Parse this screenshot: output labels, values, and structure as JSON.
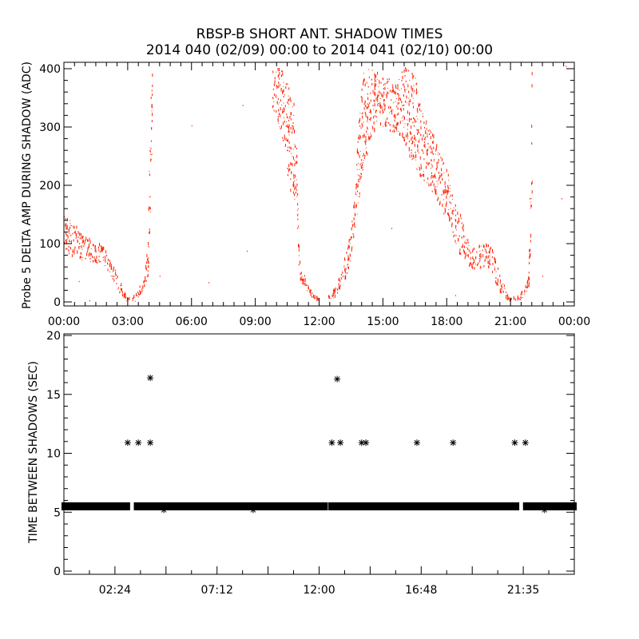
{
  "chart_data": [
    {
      "type": "scatter",
      "title": "RBSP-B SHORT ANT. SHADOW TIMES",
      "subtitle": "2014 040 (02/09) 00:00 to 2014 041 (02/10) 00:00",
      "xlabel": "",
      "ylabel": "Probe 5 DELTA AMP DURING SHADOW (ADC)",
      "x_unit": "hours",
      "xlim": [
        0,
        24
      ],
      "ylim": [
        0,
        400
      ],
      "xticks": [
        "00:00",
        "03:00",
        "06:00",
        "09:00",
        "12:00",
        "15:00",
        "18:00",
        "21:00",
        "00:00"
      ],
      "yticks": [
        "0",
        "100",
        "200",
        "300",
        "400"
      ],
      "color": "#ff2000",
      "envelope_note": "dense scatter bands given as [hour, min ADC, max ADC]",
      "bands": [
        [
          0.0,
          80,
          150
        ],
        [
          0.25,
          78,
          140
        ],
        [
          0.5,
          75,
          130
        ],
        [
          0.75,
          72,
          118
        ],
        [
          1.0,
          70,
          110
        ],
        [
          1.25,
          68,
          105
        ],
        [
          1.5,
          65,
          100
        ],
        [
          1.75,
          62,
          95
        ],
        [
          2.0,
          55,
          88
        ],
        [
          2.25,
          40,
          65
        ],
        [
          2.5,
          20,
          45
        ],
        [
          2.75,
          5,
          20
        ],
        [
          2.95,
          0,
          5
        ],
        [
          3.35,
          0,
          8
        ],
        [
          3.55,
          10,
          25
        ],
        [
          3.8,
          25,
          40
        ],
        [
          3.95,
          40,
          120
        ],
        [
          4.05,
          150,
          330
        ],
        [
          4.15,
          300,
          400
        ],
        [
          9.8,
          330,
          400
        ],
        [
          10.1,
          300,
          400
        ],
        [
          10.4,
          250,
          390
        ],
        [
          10.6,
          190,
          360
        ],
        [
          10.8,
          180,
          340
        ],
        [
          10.95,
          150,
          260
        ],
        [
          11.05,
          40,
          70
        ],
        [
          11.25,
          25,
          50
        ],
        [
          11.5,
          10,
          25
        ],
        [
          11.75,
          2,
          10
        ],
        [
          11.95,
          0,
          4
        ],
        [
          12.4,
          0,
          8
        ],
        [
          12.7,
          5,
          20
        ],
        [
          13.0,
          20,
          50
        ],
        [
          13.25,
          40,
          80
        ],
        [
          13.5,
          70,
          130
        ],
        [
          13.7,
          120,
          190
        ],
        [
          13.85,
          170,
          330
        ],
        [
          14.1,
          240,
          400
        ],
        [
          14.4,
          260,
          400
        ],
        [
          14.7,
          300,
          390
        ],
        [
          15.0,
          300,
          390
        ],
        [
          15.3,
          290,
          380
        ],
        [
          15.6,
          290,
          370
        ],
        [
          15.9,
          280,
          400
        ],
        [
          16.2,
          250,
          400
        ],
        [
          16.5,
          230,
          400
        ],
        [
          16.8,
          210,
          330
        ],
        [
          17.1,
          200,
          300
        ],
        [
          17.4,
          180,
          280
        ],
        [
          17.7,
          160,
          250
        ],
        [
          18.0,
          140,
          230
        ],
        [
          18.3,
          110,
          170
        ],
        [
          18.6,
          80,
          150
        ],
        [
          18.9,
          65,
          110
        ],
        [
          19.2,
          55,
          90
        ],
        [
          19.5,
          55,
          95
        ],
        [
          19.8,
          60,
          100
        ],
        [
          20.1,
          50,
          95
        ],
        [
          20.4,
          20,
          55
        ],
        [
          20.7,
          5,
          25
        ],
        [
          20.95,
          0,
          5
        ],
        [
          21.4,
          0,
          8
        ],
        [
          21.65,
          10,
          25
        ],
        [
          21.85,
          25,
          45
        ],
        [
          22.0,
          150,
          400
        ]
      ],
      "isolated_points": [
        [
          8.4,
          338
        ],
        [
          6.0,
          303
        ],
        [
          4.5,
          45
        ],
        [
          8.6,
          88
        ],
        [
          6.8,
          34
        ],
        [
          1.2,
          3
        ],
        [
          0.7,
          36
        ],
        [
          15.4,
          127
        ],
        [
          22.5,
          45
        ],
        [
          23.4,
          178
        ],
        [
          23.6,
          405
        ],
        [
          18.4,
          12
        ],
        [
          3.9,
          45
        ]
      ]
    },
    {
      "type": "scatter",
      "marker": "asterisk",
      "ylabel": "TIME BETWEEN SHADOWS (SEC)",
      "x_unit": "hours",
      "xlim": [
        0,
        24
      ],
      "ylim": [
        0,
        20
      ],
      "xticks": [
        "02:24",
        "07:12",
        "12:00",
        "16:48",
        "21:35"
      ],
      "xtick_values": [
        2.4,
        7.2,
        12.0,
        16.8,
        21.6
      ],
      "yticks": [
        "0",
        "5",
        "10",
        "15",
        "20"
      ],
      "color": "#000000",
      "baseline_value": 5.5,
      "baseline_segments": [
        [
          0.0,
          3.0
        ],
        [
          3.4,
          12.3
        ],
        [
          12.55,
          21.3
        ],
        [
          21.7,
          24.0
        ]
      ],
      "points": [
        [
          3.0,
          10.9
        ],
        [
          3.5,
          10.9
        ],
        [
          4.06,
          10.9
        ],
        [
          4.06,
          16.4
        ],
        [
          12.6,
          10.9
        ],
        [
          13.0,
          10.9
        ],
        [
          12.85,
          16.3
        ],
        [
          14.0,
          10.9
        ],
        [
          14.2,
          10.9
        ],
        [
          16.6,
          10.9
        ],
        [
          18.3,
          10.9
        ],
        [
          21.2,
          10.9
        ],
        [
          21.7,
          10.9
        ],
        [
          4.7,
          5.2
        ],
        [
          8.9,
          5.2
        ],
        [
          22.6,
          5.2
        ]
      ]
    }
  ]
}
